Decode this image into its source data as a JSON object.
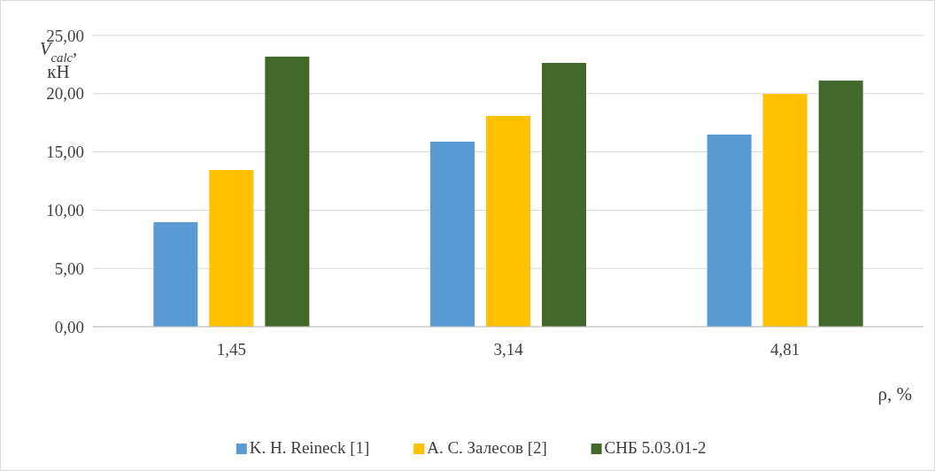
{
  "chart_data": {
    "type": "bar",
    "ylabel": "V$_{calc}$, кН",
    "xlabel": "ρ, %",
    "categories": [
      "1,45",
      "3,14",
      "4,81"
    ],
    "series": [
      {
        "name": "K. H. Reineck [1]",
        "color": "#5b9bd5",
        "values": [
          8.97,
          15.88,
          16.49
        ]
      },
      {
        "name": "А. С. Залесов [2]",
        "color": "#ffc000",
        "values": [
          13.45,
          18.09,
          19.98
        ]
      },
      {
        "name": "СНБ 5.03.01-2",
        "color": "#43682b",
        "values": [
          23.18,
          22.64,
          21.12
        ]
      }
    ],
    "ylim": [
      0,
      25
    ],
    "yticks": [
      {
        "value": 0,
        "label": "0,00"
      },
      {
        "value": 5,
        "label": "5,00"
      },
      {
        "value": 10,
        "label": "10,00"
      },
      {
        "value": 15,
        "label": "15,00"
      },
      {
        "value": 20,
        "label": "20,00"
      },
      {
        "value": 25,
        "label": "25,00"
      }
    ],
    "grid": "y",
    "legend": "bottom"
  }
}
